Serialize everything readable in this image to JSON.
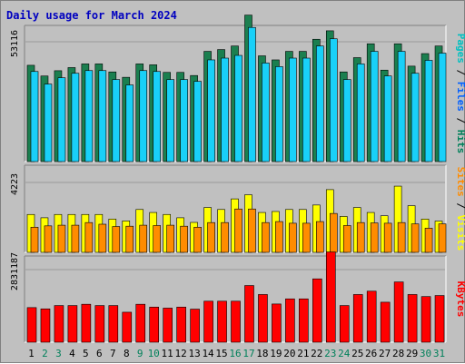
{
  "title": "Daily usage for March 2024",
  "chart_data": [
    {
      "type": "bar",
      "panel": "top",
      "categories": [
        "1",
        "2",
        "3",
        "4",
        "5",
        "6",
        "7",
        "8",
        "9",
        "10",
        "11",
        "12",
        "13",
        "14",
        "15",
        "16",
        "17",
        "18",
        "19",
        "20",
        "21",
        "22",
        "23",
        "24",
        "25",
        "26",
        "27",
        "28",
        "29",
        "30",
        "31"
      ],
      "y_tick_label": "53116",
      "y_tick_value": 53116,
      "series": [
        {
          "name": "Hits",
          "color": "#1b7f4f",
          "values": [
            42690,
            37940,
            40280,
            41670,
            43300,
            43300,
            39740,
            37360,
            43300,
            42900,
            39540,
            39540,
            38150,
            48860,
            49660,
            51240,
            64940,
            46880,
            45080,
            48860,
            48860,
            54220,
            57980,
            39740,
            46080,
            52220,
            40540,
            52220,
            42310,
            47870,
            51240
          ]
        },
        {
          "name": "Files",
          "color": "#19d0f8",
          "values": [
            39940,
            34360,
            37150,
            39140,
            40340,
            40340,
            36360,
            33970,
            40340,
            39940,
            36360,
            36360,
            35560,
            45080,
            45870,
            47070,
            59460,
            43690,
            42090,
            45870,
            45870,
            51240,
            54430,
            36360,
            43300,
            48860,
            37950,
            48860,
            39140,
            44880,
            48070
          ]
        },
        {
          "name": "Pages",
          "color": "#00c8e8",
          "values": [
            0,
            0,
            0,
            0,
            0,
            0,
            0,
            0,
            0,
            0,
            0,
            0,
            0,
            0,
            0,
            0,
            0,
            0,
            0,
            0,
            0,
            0,
            0,
            0,
            0,
            0,
            0,
            0,
            0,
            0,
            0
          ]
        }
      ],
      "legend": [
        "Pages",
        "Files",
        "Hits"
      ],
      "legend_colors": [
        "#00c0c0",
        "#0060ff",
        "#00805a"
      ]
    },
    {
      "type": "bar",
      "panel": "middle",
      "categories": [
        "1",
        "2",
        "3",
        "4",
        "5",
        "6",
        "7",
        "8",
        "9",
        "10",
        "11",
        "12",
        "13",
        "14",
        "15",
        "16",
        "17",
        "18",
        "19",
        "20",
        "21",
        "22",
        "23",
        "24",
        "25",
        "26",
        "27",
        "28",
        "29",
        "30",
        "31"
      ],
      "y_tick_label": "4223",
      "y_tick_value": 4223,
      "series": [
        {
          "name": "Visits",
          "color": "#ffff00",
          "values": [
            2290,
            2090,
            2290,
            2290,
            2290,
            2290,
            2010,
            1900,
            2590,
            2410,
            2290,
            2090,
            1810,
            2710,
            2590,
            3230,
            3480,
            2410,
            2470,
            2590,
            2590,
            2860,
            3790,
            2170,
            2710,
            2410,
            2210,
            4000,
            2820,
            2010,
            1890
          ]
        },
        {
          "name": "Sites",
          "color": "#ff8c00",
          "values": [
            1520,
            1600,
            1640,
            1640,
            1800,
            1700,
            1560,
            1580,
            1640,
            1620,
            1640,
            1580,
            1520,
            1800,
            1800,
            2620,
            2620,
            1800,
            1860,
            1760,
            1760,
            1860,
            2350,
            1620,
            1800,
            1780,
            1760,
            1800,
            1720,
            1460,
            1720
          ]
        }
      ],
      "legend": [
        "Sites",
        "Visits"
      ],
      "legend_colors": [
        "#ff8c00",
        "#ffff00"
      ]
    },
    {
      "type": "bar",
      "panel": "bottom",
      "categories": [
        "1",
        "2",
        "3",
        "4",
        "5",
        "6",
        "7",
        "8",
        "9",
        "10",
        "11",
        "12",
        "13",
        "14",
        "15",
        "16",
        "17",
        "18",
        "19",
        "20",
        "21",
        "22",
        "23",
        "24",
        "25",
        "26",
        "27",
        "28",
        "29",
        "30",
        "31"
      ],
      "y_tick_label": "2831187",
      "y_tick_value": 2831187,
      "series": [
        {
          "name": "KBytes",
          "color": "#ff0000",
          "values": [
            1350000,
            1300000,
            1430000,
            1430000,
            1480000,
            1430000,
            1430000,
            1170000,
            1480000,
            1370000,
            1330000,
            1370000,
            1290000,
            1600000,
            1600000,
            1600000,
            2210000,
            1860000,
            1490000,
            1690000,
            1690000,
            2470000,
            3520000,
            1430000,
            1860000,
            1990000,
            1560000,
            2350000,
            1860000,
            1780000,
            1820000
          ]
        }
      ],
      "legend": [
        "KBytes"
      ],
      "legend_colors": [
        "#ff0000"
      ]
    }
  ],
  "x_labels": [
    "1",
    "2",
    "3",
    "4",
    "5",
    "6",
    "7",
    "8",
    "9",
    "10",
    "11",
    "12",
    "13",
    "14",
    "15",
    "16",
    "17",
    "18",
    "19",
    "20",
    "21",
    "22",
    "23",
    "24",
    "25",
    "26",
    "27",
    "28",
    "29",
    "30",
    "31"
  ],
  "weekend_days": [
    "2",
    "3",
    "9",
    "10",
    "16",
    "17",
    "23",
    "24",
    "30",
    "31"
  ],
  "colors": {
    "title": "#0000c0",
    "panel_bg": "#c0c0c0",
    "weekday_label": "#000000",
    "weekend_label": "#00805a"
  }
}
